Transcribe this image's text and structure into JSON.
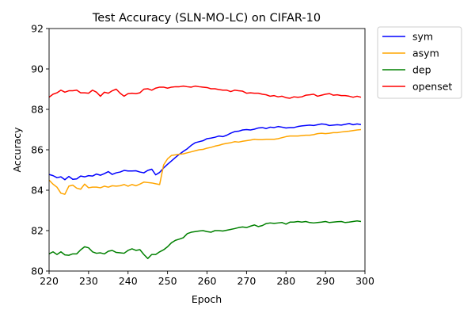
{
  "chart_data": {
    "type": "line",
    "title": "Test Accuracy (SLN-MO-LC) on CIFAR-10",
    "xlabel": "Epoch",
    "ylabel": "Accuracy",
    "xlim": [
      220,
      300
    ],
    "ylim": [
      80,
      92
    ],
    "xticks": [
      220,
      230,
      240,
      250,
      260,
      270,
      280,
      290,
      300
    ],
    "yticks": [
      80,
      82,
      84,
      86,
      88,
      90,
      92
    ],
    "grid": false,
    "legend_position": "outside-top-right",
    "x": [
      220,
      221,
      222,
      223,
      224,
      225,
      226,
      227,
      228,
      229,
      230,
      231,
      232,
      233,
      234,
      235,
      236,
      237,
      238,
      239,
      240,
      241,
      242,
      243,
      244,
      245,
      246,
      247,
      248,
      249,
      250,
      251,
      252,
      253,
      254,
      255,
      256,
      257,
      258,
      259,
      260,
      261,
      262,
      263,
      264,
      265,
      266,
      267,
      268,
      269,
      270,
      271,
      272,
      273,
      274,
      275,
      276,
      277,
      278,
      279,
      280,
      281,
      282,
      283,
      284,
      285,
      286,
      287,
      288,
      289,
      290,
      291,
      292,
      293,
      294,
      295,
      296,
      297,
      298,
      299
    ],
    "series": [
      {
        "name": "sym",
        "color": "#0000ff",
        "values": [
          84.78,
          84.72,
          84.62,
          84.66,
          84.52,
          84.68,
          84.54,
          84.56,
          84.7,
          84.66,
          84.72,
          84.7,
          84.8,
          84.74,
          84.82,
          84.92,
          84.78,
          84.86,
          84.9,
          84.98,
          84.95,
          84.95,
          84.96,
          84.9,
          84.86,
          84.98,
          85.04,
          84.76,
          84.88,
          85.1,
          85.28,
          85.45,
          85.62,
          85.78,
          85.92,
          86.05,
          86.22,
          86.35,
          86.4,
          86.45,
          86.55,
          86.58,
          86.62,
          86.68,
          86.65,
          86.72,
          86.82,
          86.9,
          86.92,
          86.98,
          87.0,
          86.98,
          87.02,
          87.08,
          87.1,
          87.05,
          87.12,
          87.1,
          87.15,
          87.12,
          87.08,
          87.1,
          87.1,
          87.15,
          87.18,
          87.2,
          87.22,
          87.2,
          87.24,
          87.28,
          87.26,
          87.2,
          87.22,
          87.24,
          87.22,
          87.26,
          87.3,
          87.24,
          87.28,
          87.25
        ]
      },
      {
        "name": "asym",
        "color": "#ffa500",
        "values": [
          84.5,
          84.3,
          84.15,
          83.85,
          83.8,
          84.2,
          84.25,
          84.1,
          84.05,
          84.3,
          84.12,
          84.15,
          84.15,
          84.12,
          84.2,
          84.15,
          84.22,
          84.2,
          84.22,
          84.28,
          84.2,
          84.28,
          84.22,
          84.3,
          84.4,
          84.38,
          84.36,
          84.32,
          84.28,
          85.25,
          85.55,
          85.72,
          85.75,
          85.78,
          85.8,
          85.85,
          85.9,
          85.95,
          86.0,
          86.02,
          86.08,
          86.12,
          86.18,
          86.22,
          86.28,
          86.32,
          86.35,
          86.4,
          86.38,
          86.42,
          86.45,
          86.48,
          86.52,
          86.5,
          86.5,
          86.52,
          86.52,
          86.52,
          86.55,
          86.6,
          86.65,
          86.68,
          86.68,
          86.68,
          86.7,
          86.72,
          86.72,
          86.75,
          86.8,
          86.82,
          86.8,
          86.82,
          86.85,
          86.85,
          86.88,
          86.9,
          86.92,
          86.95,
          86.98,
          87.0
        ]
      },
      {
        "name": "dep",
        "color": "#008000",
        "values": [
          80.85,
          80.95,
          80.82,
          80.95,
          80.8,
          80.78,
          80.85,
          80.85,
          81.05,
          81.2,
          81.15,
          80.95,
          80.88,
          80.9,
          80.85,
          80.98,
          81.02,
          80.92,
          80.9,
          80.88,
          81.02,
          81.1,
          81.02,
          81.06,
          80.82,
          80.62,
          80.82,
          80.82,
          80.95,
          81.05,
          81.2,
          81.4,
          81.52,
          81.58,
          81.65,
          81.85,
          81.92,
          81.95,
          81.98,
          82.0,
          81.95,
          81.92,
          82.0,
          82.0,
          81.98,
          82.02,
          82.06,
          82.1,
          82.15,
          82.18,
          82.15,
          82.22,
          82.28,
          82.2,
          82.25,
          82.35,
          82.38,
          82.36,
          82.38,
          82.4,
          82.32,
          82.42,
          82.42,
          82.45,
          82.42,
          82.45,
          82.4,
          82.38,
          82.4,
          82.42,
          82.45,
          82.4,
          82.42,
          82.44,
          82.45,
          82.4,
          82.42,
          82.45,
          82.48,
          82.45
        ]
      },
      {
        "name": "openset",
        "color": "#ff0000",
        "values": [
          88.6,
          88.75,
          88.82,
          88.95,
          88.85,
          88.92,
          88.92,
          88.95,
          88.82,
          88.82,
          88.8,
          88.95,
          88.85,
          88.65,
          88.85,
          88.8,
          88.92,
          89.0,
          88.8,
          88.65,
          88.78,
          88.8,
          88.78,
          88.82,
          89.0,
          89.02,
          88.95,
          89.05,
          89.1,
          89.1,
          89.05,
          89.1,
          89.12,
          89.12,
          89.15,
          89.12,
          89.1,
          89.15,
          89.12,
          89.1,
          89.08,
          89.02,
          89.02,
          88.98,
          88.95,
          88.95,
          88.88,
          88.95,
          88.92,
          88.9,
          88.8,
          88.82,
          88.8,
          88.8,
          88.75,
          88.72,
          88.65,
          88.68,
          88.62,
          88.65,
          88.58,
          88.55,
          88.62,
          88.6,
          88.62,
          88.7,
          88.72,
          88.75,
          88.65,
          88.7,
          88.75,
          88.78,
          88.7,
          88.72,
          88.68,
          88.68,
          88.65,
          88.6,
          88.65,
          88.6
        ]
      }
    ]
  }
}
